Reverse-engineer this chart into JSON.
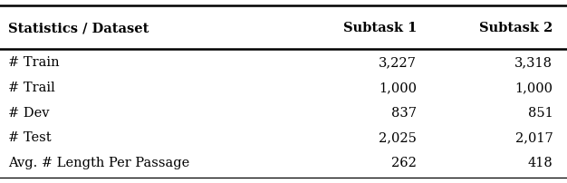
{
  "col_headers": [
    "Statistics / Dataset",
    "Subtask 1",
    "Subtask 2"
  ],
  "rows": [
    [
      "# Train",
      "3,227",
      "3,318"
    ],
    [
      "# Trail",
      "1,000",
      "1,000"
    ],
    [
      "# Dev",
      "837",
      "851"
    ],
    [
      "# Test",
      "2,025",
      "2,017"
    ],
    [
      "Avg. # Length Per Passage",
      "262",
      "418"
    ]
  ],
  "header_fontsize": 10.5,
  "body_fontsize": 10.5,
  "background_color": "#ffffff",
  "line_color": "#000000",
  "header_font_weight": "bold",
  "body_font_weight": "normal",
  "fig_width": 6.26,
  "fig_height": 2.02,
  "dpi": 100
}
